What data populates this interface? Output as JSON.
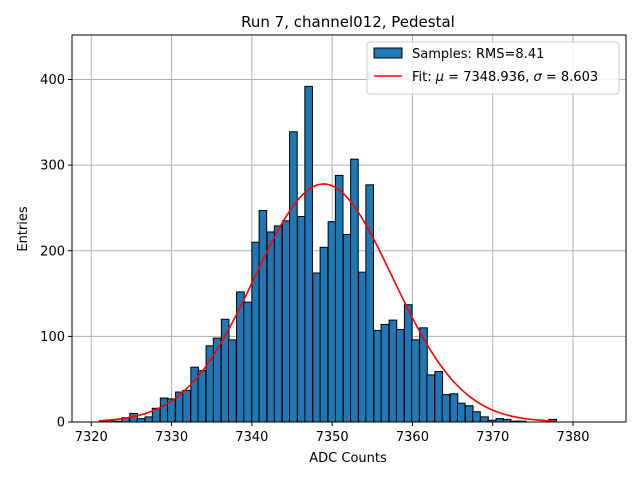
{
  "chart_data": {
    "type": "bar",
    "title": "Run 7, channel012, Pedestal",
    "xlabel": "ADC Counts",
    "ylabel": "Entries",
    "xlim": [
      7317.6,
      7386.6
    ],
    "ylim": [
      0,
      452
    ],
    "xticks": [
      7320,
      7330,
      7340,
      7350,
      7360,
      7370,
      7380
    ],
    "yticks": [
      0,
      100,
      200,
      300,
      400
    ],
    "grid": true,
    "legend_position": "top-right",
    "bin_width": 0.95,
    "histogram": {
      "name": "Samples: RMS=8.41",
      "color": "#1f77b4",
      "bin_starts": [
        7321.0,
        7321.9,
        7322.9,
        7323.8,
        7324.8,
        7325.7,
        7326.7,
        7327.6,
        7328.6,
        7329.5,
        7330.5,
        7331.4,
        7332.4,
        7333.3,
        7334.3,
        7335.2,
        7336.2,
        7337.1,
        7338.1,
        7339.0,
        7340.0,
        7340.9,
        7341.9,
        7342.8,
        7343.8,
        7344.7,
        7345.7,
        7346.6,
        7347.6,
        7348.5,
        7349.5,
        7350.4,
        7351.4,
        7352.3,
        7353.3,
        7354.2,
        7355.2,
        7356.1,
        7357.1,
        7358.0,
        7359.0,
        7359.9,
        7360.9,
        7361.8,
        7362.8,
        7363.7,
        7364.7,
        7365.6,
        7366.6,
        7367.5,
        7368.5,
        7369.4,
        7370.4,
        7371.3,
        7372.3,
        7373.2,
        7374.2,
        7375.1,
        7376.1,
        7377.0
      ],
      "counts": [
        1,
        2,
        1,
        5,
        10,
        4,
        6,
        16,
        28,
        27,
        35,
        37,
        64,
        60,
        89,
        98,
        120,
        96,
        152,
        140,
        210,
        247,
        222,
        229,
        235,
        339,
        240,
        392,
        174,
        204,
        234,
        288,
        219,
        307,
        175,
        277,
        107,
        114,
        119,
        108,
        137,
        96,
        110,
        55,
        59,
        32,
        33,
        22,
        19,
        12,
        6,
        2,
        4,
        3,
        1,
        1,
        0,
        0,
        0,
        3
      ]
    },
    "fit": {
      "name": "Fit: μ = 7348.936, σ = 8.603",
      "legend_label_prefix": "Fit: ",
      "mu_symbol": "μ",
      "mu_value": "7348.936",
      "sigma_symbol": "σ",
      "sigma_value": "8.603",
      "color": "#ff0000",
      "mu": 7348.936,
      "sigma": 8.603,
      "amplitude": 278,
      "x_range": [
        7321.0,
        7378.0
      ]
    }
  },
  "legend": {
    "hist_label": "Samples: RMS=8.41",
    "fit_prefix": "Fit: ",
    "mu_symbol": "μ",
    "mu_rest": " = 7348.936, ",
    "sigma_symbol": "σ",
    "sigma_rest": " = 8.603"
  }
}
